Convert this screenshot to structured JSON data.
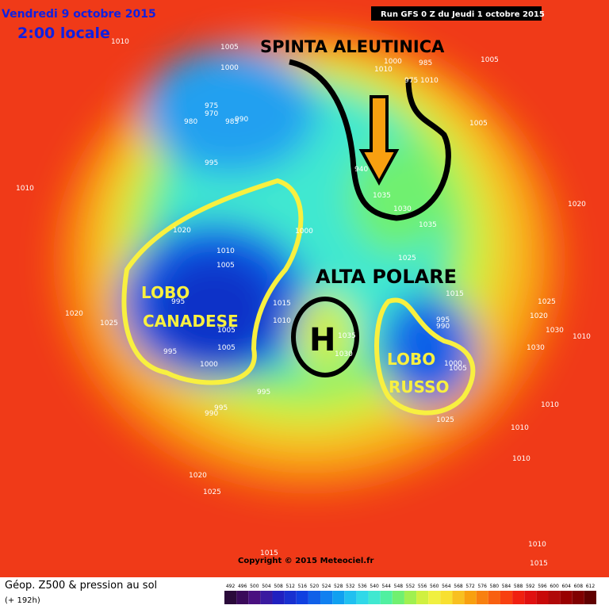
{
  "header": {
    "date": "Vendredi 9 octobre 2015",
    "time": "2:00 locale",
    "run": "Run GFS 0 Z du Jeudi 1 octobre 2015"
  },
  "annotations": {
    "aleutian": "SPINTA ALEUTINICA",
    "polar": "ALTA POLARE",
    "high": "H",
    "canadian_1": "LOBO",
    "canadian_2": "CANADESE",
    "russian_1": "LOBO",
    "russian_2": "RUSSO"
  },
  "isobars": [
    "1010",
    "1005",
    "1000",
    "975",
    "970",
    "980",
    "985",
    "990",
    "995",
    "1000",
    "985",
    "1005",
    "1010",
    "1010",
    "975",
    "1005",
    "940",
    "1035",
    "1030",
    "1035",
    "1010",
    "1020",
    "1020",
    "1010",
    "1005",
    "1000",
    "1025",
    "1015",
    "1025",
    "1020",
    "1030",
    "1010",
    "1030",
    "1020",
    "1025",
    "995",
    "1015",
    "1010",
    "1035",
    "1030",
    "995",
    "990",
    "1005",
    "1005",
    "995",
    "1000",
    "1005",
    "1000",
    "995",
    "995",
    "990",
    "1025",
    "1010",
    "1010",
    "1010",
    "1020",
    "1025",
    "1015",
    "1010",
    "1015"
  ],
  "footer": {
    "title": "Géop. Z500 & pression au sol",
    "subtitle": "(+ 192h)",
    "copyright": "Copyright © 2015 Meteociel.fr"
  },
  "scale": {
    "labels": [
      492,
      496,
      500,
      504,
      508,
      512,
      516,
      520,
      524,
      528,
      532,
      536,
      540,
      544,
      548,
      552,
      556,
      560,
      564,
      568,
      572,
      576,
      580,
      584,
      588,
      592,
      596,
      600,
      604,
      608,
      612
    ],
    "colors": [
      "#2a0a3a",
      "#3a0a5a",
      "#4a1080",
      "#3a1aa0",
      "#2020c0",
      "#1830d0",
      "#1040e0",
      "#1060e8",
      "#1080f0",
      "#10a0f0",
      "#20c0f0",
      "#30d8e8",
      "#40e8d0",
      "#50f0a0",
      "#70f070",
      "#a0f050",
      "#d0f040",
      "#f0f040",
      "#f8e030",
      "#f8c020",
      "#f8a010",
      "#f88010",
      "#f86010",
      "#f84010",
      "#f02010",
      "#e01010",
      "#c80808",
      "#b00808",
      "#980000",
      "#800000",
      "#600000"
    ]
  }
}
